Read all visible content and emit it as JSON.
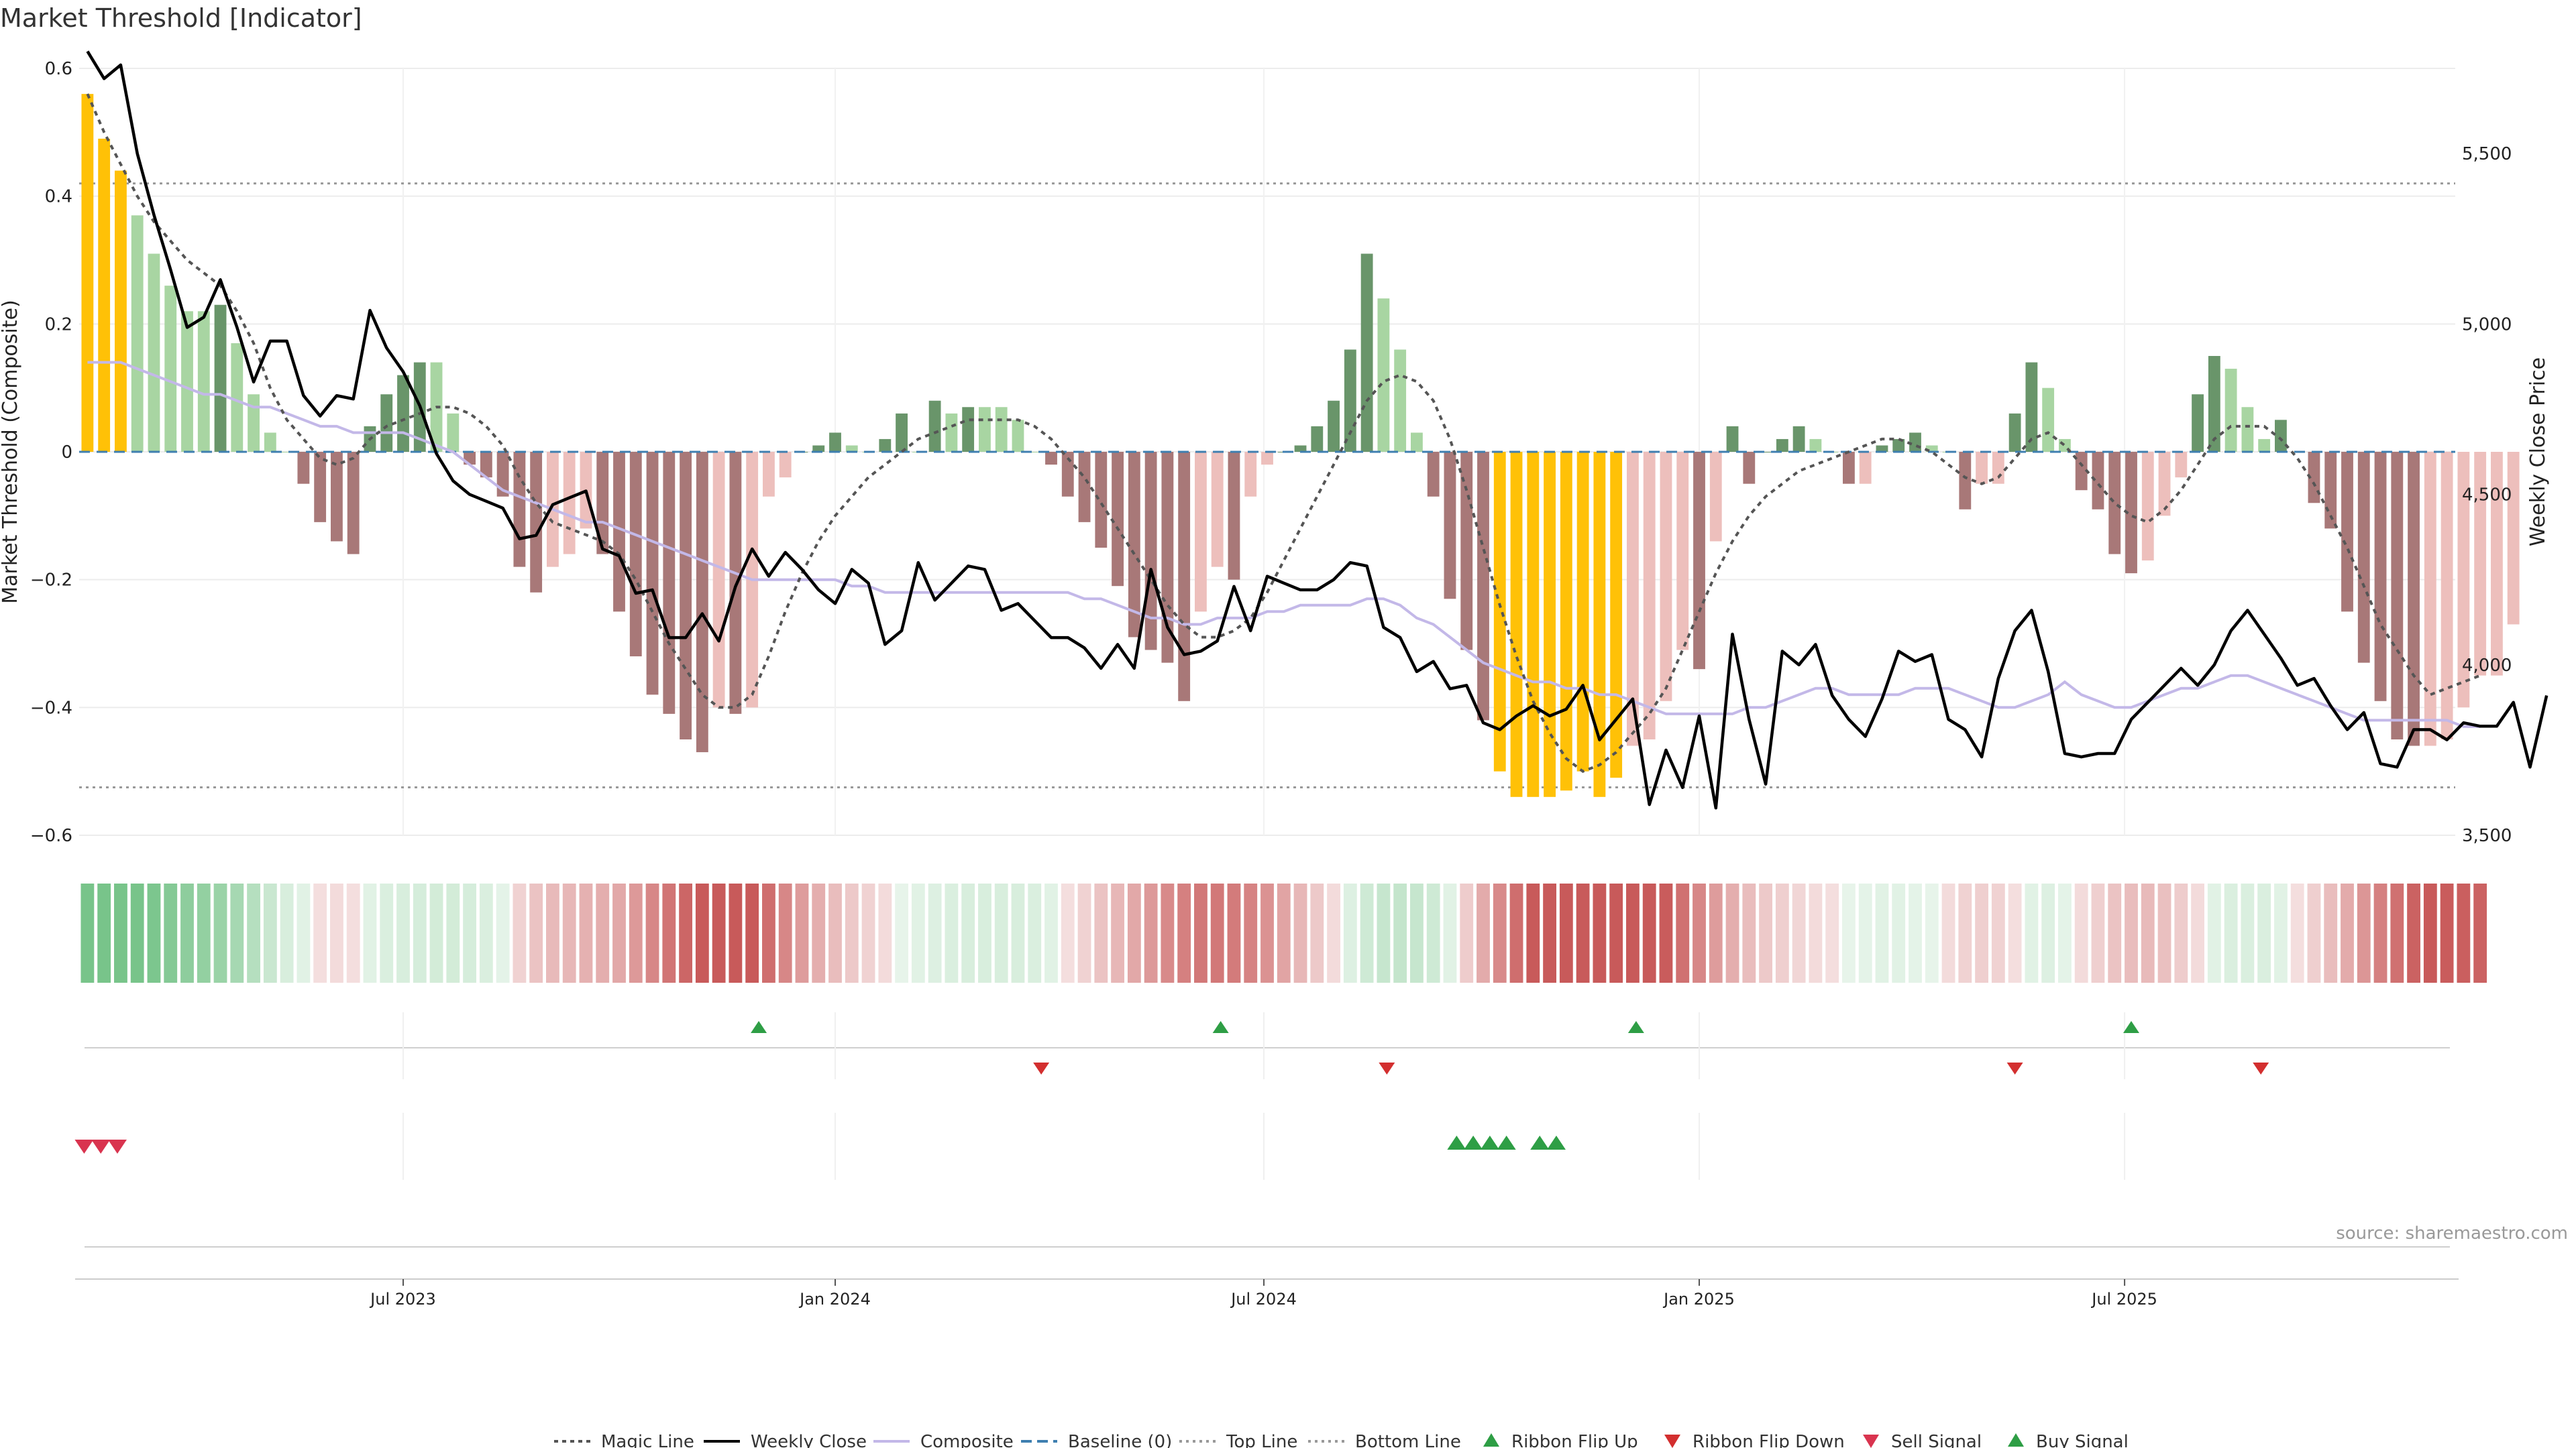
{
  "title": "Market Threshold [Indicator]",
  "source": "source: sharemaestro.com",
  "colors": {
    "extreme": "#FFC107",
    "strong_pos": "#69956A",
    "weak_pos": "#A8D5A2",
    "strong_neg": "#A87878",
    "weak_neg": "#EDBFBC",
    "weekly_close": "#000000",
    "magic_line": "#555555",
    "composite": "#C3B8E8",
    "baseline": "#3F7FB0",
    "ribbon_flip_up": "#2E9E45",
    "ribbon_flip_down": "#D32F2F",
    "sell_signal": "#D9344F",
    "buy_signal": "#2E9E45"
  },
  "chart_data": {
    "type": "bar",
    "title": "Market Threshold [Indicator]",
    "ylabel_left": "Market Threshold (Composite)",
    "ylabel_right": "Weekly Close Price",
    "ylim_left": [
      -0.6,
      0.6
    ],
    "ylim_right": [
      3500,
      5750
    ],
    "yticks_left": [
      "0.6",
      "0.4",
      "0.2",
      "0",
      "−0.2",
      "−0.4",
      "−0.6"
    ],
    "yticks_right": [
      "5,500",
      "5,000",
      "4,500",
      "4,000",
      "3,500"
    ],
    "xticks": [
      "Jul 2023",
      "Jan 2024",
      "Jul 2024",
      "Jan 2025",
      "Jul 2025"
    ],
    "xtick_weeks": [
      19.5,
      45.5,
      71.3,
      97.5,
      123.1
    ],
    "top_line": 0.42,
    "bottom_line": -0.525,
    "weeks": 143,
    "grid": true,
    "composite_bars": [
      0.56,
      0.49,
      0.44,
      0.37,
      0.31,
      0.26,
      0.22,
      0.22,
      0.23,
      0.17,
      0.09,
      0.03,
      0.0,
      -0.05,
      -0.11,
      -0.14,
      -0.16,
      0.04,
      0.09,
      0.12,
      0.14,
      0.14,
      0.06,
      -0.02,
      -0.04,
      -0.07,
      -0.18,
      -0.22,
      -0.18,
      -0.16,
      -0.12,
      -0.16,
      -0.25,
      -0.32,
      -0.38,
      -0.41,
      -0.45,
      -0.47,
      -0.4,
      -0.41,
      -0.4,
      -0.07,
      -0.04,
      0.0,
      0.01,
      0.03,
      0.01,
      0.0,
      0.02,
      0.06,
      0.0,
      0.08,
      0.06,
      0.07,
      0.07,
      0.07,
      0.05,
      0.0,
      -0.02,
      -0.07,
      -0.11,
      -0.15,
      -0.21,
      -0.29,
      -0.31,
      -0.33,
      -0.39,
      -0.25,
      -0.18,
      -0.2,
      -0.07,
      -0.02,
      0.0,
      0.01,
      0.04,
      0.08,
      0.16,
      0.31,
      0.24,
      0.16,
      0.03,
      -0.07,
      -0.23,
      -0.31,
      -0.42,
      -0.5,
      -0.54,
      -0.54,
      -0.54,
      -0.53,
      -0.5,
      -0.54,
      -0.51,
      -0.46,
      -0.45,
      -0.39,
      -0.31,
      -0.34,
      -0.14,
      0.04,
      -0.05,
      0.0,
      0.02,
      0.04,
      0.02,
      0.0,
      -0.05,
      -0.05,
      0.01,
      0.02,
      0.03,
      0.01,
      0.0,
      -0.09,
      -0.05,
      -0.05,
      0.06,
      0.14,
      0.1,
      0.02,
      -0.06,
      -0.09,
      -0.16,
      -0.19,
      -0.17,
      -0.1,
      -0.04,
      0.09,
      0.15,
      0.13,
      0.07,
      0.02,
      0.05,
      0.0,
      -0.08,
      -0.12,
      -0.25,
      -0.33,
      -0.39,
      -0.45,
      -0.46,
      -0.46,
      -0.45,
      -0.4,
      -0.35,
      -0.35,
      -0.27
    ],
    "composite_line": [
      0.14,
      0.14,
      0.14,
      0.13,
      0.12,
      0.11,
      0.1,
      0.09,
      0.09,
      0.08,
      0.07,
      0.07,
      0.06,
      0.05,
      0.04,
      0.04,
      0.03,
      0.03,
      0.03,
      0.03,
      0.02,
      0.01,
      0.0,
      -0.02,
      -0.04,
      -0.06,
      -0.07,
      -0.08,
      -0.09,
      -0.1,
      -0.11,
      -0.11,
      -0.12,
      -0.13,
      -0.14,
      -0.15,
      -0.16,
      -0.17,
      -0.18,
      -0.19,
      -0.2,
      -0.2,
      -0.2,
      -0.2,
      -0.2,
      -0.2,
      -0.21,
      -0.21,
      -0.22,
      -0.22,
      -0.22,
      -0.22,
      -0.22,
      -0.22,
      -0.22,
      -0.22,
      -0.22,
      -0.22,
      -0.22,
      -0.22,
      -0.23,
      -0.23,
      -0.24,
      -0.25,
      -0.26,
      -0.26,
      -0.27,
      -0.27,
      -0.26,
      -0.26,
      -0.26,
      -0.25,
      -0.25,
      -0.24,
      -0.24,
      -0.24,
      -0.24,
      -0.23,
      -0.23,
      -0.24,
      -0.26,
      -0.27,
      -0.29,
      -0.31,
      -0.33,
      -0.34,
      -0.35,
      -0.36,
      -0.36,
      -0.37,
      -0.37,
      -0.38,
      -0.38,
      -0.39,
      -0.4,
      -0.41,
      -0.41,
      -0.41,
      -0.41,
      -0.41,
      -0.4,
      -0.4,
      -0.39,
      -0.38,
      -0.37,
      -0.37,
      -0.38,
      -0.38,
      -0.38,
      -0.38,
      -0.37,
      -0.37,
      -0.37,
      -0.38,
      -0.39,
      -0.4,
      -0.4,
      -0.39,
      -0.38,
      -0.36,
      -0.38,
      -0.39,
      -0.4,
      -0.4,
      -0.39,
      -0.38,
      -0.37,
      -0.37,
      -0.36,
      -0.35,
      -0.35,
      -0.36,
      -0.37,
      -0.38,
      -0.39,
      -0.4,
      -0.41,
      -0.42,
      -0.42,
      -0.42,
      -0.42,
      -0.42,
      -0.42,
      -0.43,
      -0.43
    ],
    "magic_line": [
      0.56,
      0.5,
      0.45,
      0.4,
      0.36,
      0.33,
      0.3,
      0.28,
      0.26,
      0.22,
      0.17,
      0.1,
      0.05,
      0.02,
      -0.01,
      -0.02,
      -0.01,
      0.02,
      0.04,
      0.05,
      0.06,
      0.07,
      0.07,
      0.06,
      0.04,
      0.01,
      -0.04,
      -0.08,
      -0.11,
      -0.12,
      -0.13,
      -0.14,
      -0.16,
      -0.2,
      -0.25,
      -0.3,
      -0.34,
      -0.38,
      -0.4,
      -0.4,
      -0.38,
      -0.32,
      -0.25,
      -0.19,
      -0.14,
      -0.1,
      -0.07,
      -0.04,
      -0.02,
      0.0,
      0.02,
      0.03,
      0.04,
      0.05,
      0.05,
      0.05,
      0.05,
      0.04,
      0.02,
      -0.01,
      -0.04,
      -0.08,
      -0.12,
      -0.16,
      -0.2,
      -0.24,
      -0.27,
      -0.29,
      -0.29,
      -0.28,
      -0.26,
      -0.22,
      -0.17,
      -0.12,
      -0.07,
      -0.02,
      0.03,
      0.08,
      0.11,
      0.12,
      0.11,
      0.08,
      0.02,
      -0.06,
      -0.15,
      -0.24,
      -0.32,
      -0.39,
      -0.44,
      -0.48,
      -0.5,
      -0.49,
      -0.47,
      -0.44,
      -0.41,
      -0.37,
      -0.31,
      -0.25,
      -0.19,
      -0.14,
      -0.1,
      -0.07,
      -0.05,
      -0.03,
      -0.02,
      -0.01,
      0.0,
      0.01,
      0.02,
      0.02,
      0.01,
      0.0,
      -0.02,
      -0.04,
      -0.05,
      -0.04,
      -0.01,
      0.02,
      0.03,
      0.01,
      -0.02,
      -0.05,
      -0.08,
      -0.1,
      -0.11,
      -0.09,
      -0.06,
      -0.02,
      0.02,
      0.04,
      0.04,
      0.04,
      0.02,
      -0.01,
      -0.05,
      -0.1,
      -0.15,
      -0.21,
      -0.27,
      -0.31,
      -0.35,
      -0.38,
      -0.37,
      -0.36,
      -0.35
    ],
    "weekly_close": [
      5800,
      5720,
      5760,
      5500,
      5320,
      5160,
      4990,
      5020,
      5130,
      4990,
      4830,
      4950,
      4950,
      4790,
      4730,
      4790,
      4780,
      5040,
      4930,
      4860,
      4760,
      4620,
      4540,
      4500,
      4480,
      4460,
      4370,
      4380,
      4470,
      4490,
      4510,
      4340,
      4320,
      4210,
      4220,
      4080,
      4080,
      4150,
      4070,
      4230,
      4340,
      4260,
      4330,
      4280,
      4220,
      4180,
      4280,
      4240,
      4060,
      4100,
      4300,
      4190,
      4240,
      4290,
      4280,
      4160,
      4180,
      4130,
      4080,
      4080,
      4050,
      3990,
      4060,
      3990,
      4280,
      4110,
      4030,
      4040,
      4070,
      4230,
      4100,
      4260,
      4240,
      4220,
      4220,
      4250,
      4300,
      4290,
      4110,
      4080,
      3980,
      4010,
      3930,
      3940,
      3830,
      3810,
      3850,
      3880,
      3850,
      3870,
      3940,
      3780,
      3840,
      3900,
      3590,
      3750,
      3640,
      3850,
      3580,
      4090,
      3840,
      3650,
      4040,
      4000,
      4060,
      3910,
      3840,
      3790,
      3900,
      4040,
      4010,
      4030,
      3840,
      3810,
      3730,
      3960,
      4100,
      4160,
      3980,
      3740,
      3730,
      3740,
      3740,
      3840,
      3890,
      3940,
      3990,
      3940,
      4000,
      4100,
      4160,
      4090,
      4020,
      3940,
      3960,
      3880,
      3810,
      3860,
      3710,
      3700,
      3810,
      3810,
      3780,
      3830,
      3820,
      3820,
      3890,
      3700,
      3910
    ],
    "ribbon_flip_up_weeks": [
      40.9,
      68.7,
      93.7,
      123.5
    ],
    "ribbon_flip_down_weeks": [
      57.9,
      78.7,
      116.5,
      131.3
    ],
    "sell_signal_weeks": [
      0.3,
      1.3,
      2.3
    ],
    "buy_signal_weeks": [
      82.9,
      83.9,
      84.9,
      85.9,
      87.9,
      88.9
    ],
    "legend": [
      "Magic Line",
      "Weekly Close",
      "Composite",
      "Baseline (0)",
      "Top Line",
      "Bottom Line",
      "Ribbon Flip Up",
      "Ribbon Flip Down",
      "Sell Signal",
      "Buy Signal"
    ]
  }
}
